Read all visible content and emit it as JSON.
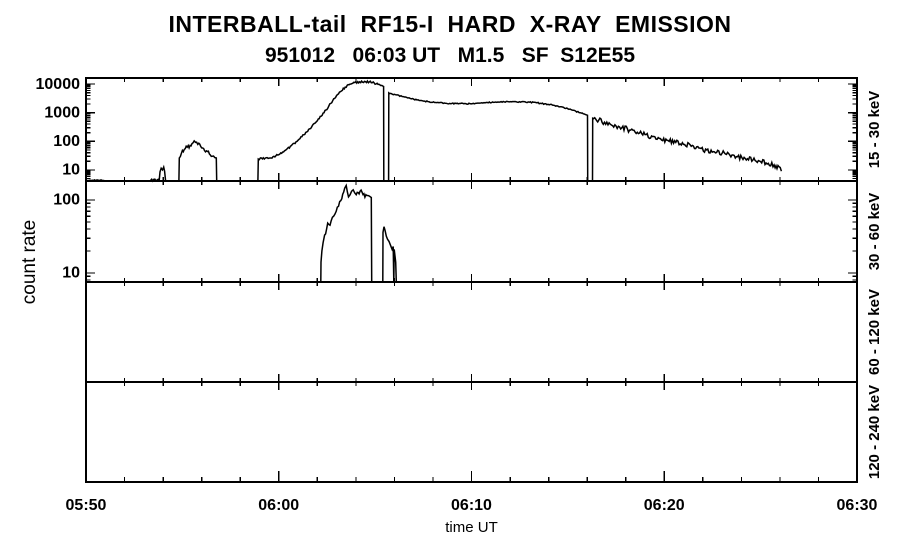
{
  "chart_data": {
    "type": "line",
    "title": "INTERBALL-tail  RF15-I  HARD  X-RAY  EMISSION",
    "subtitle": "951012   06:03 UT   M1.5   SF  S12E55",
    "xlabel": "time UT",
    "ylabel": "count rate",
    "line_color": "#000000",
    "background": "#ffffff",
    "noise_seed": 951012,
    "x_axis": {
      "unit": "minutes after 05:50 UT",
      "min": 0,
      "max": 40,
      "minor_tick_min": 2,
      "major_tick_min": 10,
      "ticks": [
        {
          "t": 0,
          "label": "05:50"
        },
        {
          "t": 10,
          "label": "06:00"
        },
        {
          "t": 20,
          "label": "06:10"
        },
        {
          "t": 30,
          "label": "06:20"
        },
        {
          "t": 40,
          "label": "06:30"
        }
      ]
    },
    "panels": [
      {
        "band_label": "15 - 30 keV",
        "scale": "log",
        "ylim": [
          4.1,
          16200
        ],
        "yticks": [
          {
            "v": 10,
            "label": "10"
          },
          {
            "v": 100,
            "label": "100"
          },
          {
            "v": 1000,
            "label": "1000"
          },
          {
            "v": 10000,
            "label": "10000"
          }
        ],
        "segments": [
          {
            "noise": 0.015,
            "points": [
              [
                0.05,
                4.35
              ],
              [
                0.95,
                4.35
              ]
            ]
          },
          {
            "noise": 0.04,
            "points": [
              [
                3.35,
                4.35
              ],
              [
                3.8,
                4.35
              ],
              [
                3.84,
                8.5
              ],
              [
                3.9,
                11.5
              ],
              [
                3.97,
                10
              ],
              [
                4.03,
                12.5
              ],
              [
                4.08,
                9
              ],
              [
                4.13,
                4.1
              ]
            ]
          },
          {
            "noise": 0.07,
            "points": [
              [
                4.82,
                4.1
              ],
              [
                4.84,
                26
              ],
              [
                4.95,
                38
              ],
              [
                5.1,
                52
              ],
              [
                5.25,
                62
              ],
              [
                5.4,
                72
              ],
              [
                5.55,
                88
              ],
              [
                5.68,
                92
              ],
              [
                5.8,
                78
              ],
              [
                5.95,
                66
              ],
              [
                6.1,
                56
              ],
              [
                6.25,
                46
              ],
              [
                6.4,
                36
              ],
              [
                6.55,
                30
              ],
              [
                6.68,
                27
              ],
              [
                6.76,
                26
              ],
              [
                6.78,
                4.1
              ]
            ]
          },
          {
            "noise": 0.035,
            "points": [
              [
                8.92,
                4.1
              ],
              [
                8.94,
                24
              ],
              [
                9.1,
                26
              ],
              [
                9.25,
                24
              ],
              [
                9.4,
                27
              ],
              [
                9.55,
                26
              ],
              [
                9.7,
                29
              ],
              [
                9.85,
                31
              ],
              [
                10.0,
                34
              ],
              [
                10.2,
                42
              ],
              [
                10.4,
                52
              ],
              [
                10.6,
                66
              ],
              [
                10.8,
                85
              ],
              [
                11.0,
                108
              ],
              [
                11.2,
                145
              ],
              [
                11.45,
                210
              ],
              [
                11.7,
                310
              ],
              [
                11.95,
                480
              ],
              [
                12.2,
                750
              ],
              [
                12.45,
                1250
              ],
              [
                12.7,
                2100
              ],
              [
                12.95,
                3400
              ],
              [
                13.2,
                5400
              ],
              [
                13.45,
                7800
              ],
              [
                13.7,
                9900
              ],
              [
                13.95,
                11200
              ],
              [
                14.2,
                11900
              ],
              [
                14.45,
                12300
              ],
              [
                14.7,
                11800
              ],
              [
                14.95,
                10800
              ],
              [
                15.15,
                9700
              ],
              [
                15.3,
                8800
              ],
              [
                15.44,
                8200
              ],
              [
                15.45,
                4.1
              ]
            ]
          },
          {
            "noise": 0.02,
            "points": [
              [
                15.7,
                4.1
              ],
              [
                15.71,
                4900
              ],
              [
                15.85,
                4600
              ],
              [
                16.1,
                4150
              ],
              [
                16.4,
                3650
              ],
              [
                16.7,
                3250
              ],
              [
                17.0,
                2950
              ],
              [
                17.4,
                2650
              ],
              [
                17.8,
                2400
              ],
              [
                18.2,
                2250
              ],
              [
                18.7,
                2120
              ],
              [
                19.2,
                2060
              ],
              [
                19.7,
                2060
              ],
              [
                20.2,
                2110
              ],
              [
                20.7,
                2200
              ],
              [
                21.2,
                2300
              ],
              [
                21.7,
                2380
              ],
              [
                22.2,
                2420
              ],
              [
                22.6,
                2400
              ],
              [
                23.0,
                2320
              ],
              [
                23.4,
                2200
              ],
              [
                23.8,
                2030
              ],
              [
                24.2,
                1830
              ],
              [
                24.6,
                1600
              ],
              [
                25.0,
                1360
              ],
              [
                25.4,
                1130
              ],
              [
                25.7,
                960
              ],
              [
                25.95,
                840
              ],
              [
                26.02,
                810
              ],
              [
                26.03,
                4.1
              ]
            ]
          },
          {
            "noise": 0.1,
            "points": [
              [
                26.28,
                4.1
              ],
              [
                26.29,
                640
              ],
              [
                26.6,
                545
              ],
              [
                26.9,
                465
              ],
              [
                27.2,
                395
              ],
              [
                27.5,
                340
              ],
              [
                27.8,
                295
              ],
              [
                28.2,
                245
              ],
              [
                28.6,
                205
              ],
              [
                29.0,
                172
              ],
              [
                29.4,
                146
              ],
              [
                29.8,
                124
              ],
              [
                30.2,
                106
              ],
              [
                30.6,
                91
              ],
              [
                31.0,
                78
              ],
              [
                31.4,
                67
              ],
              [
                31.8,
                58
              ],
              [
                32.2,
                50
              ],
              [
                32.6,
                43
              ],
              [
                33.0,
                38
              ],
              [
                33.4,
                33
              ],
              [
                33.8,
                29
              ],
              [
                34.2,
                25
              ],
              [
                34.6,
                22
              ],
              [
                35.0,
                19.5
              ],
              [
                35.4,
                17
              ],
              [
                35.7,
                15
              ],
              [
                35.95,
                13
              ],
              [
                36.08,
                9
              ]
            ]
          }
        ]
      },
      {
        "band_label": "30 - 60 keV",
        "scale": "log",
        "ylim": [
          7.5,
          182
        ],
        "yticks": [
          {
            "v": 10,
            "label": "10"
          },
          {
            "v": 100,
            "label": "100"
          }
        ],
        "segments": [
          {
            "noise": 0.055,
            "points": [
              [
                12.18,
                7.5
              ],
              [
                12.19,
                14
              ],
              [
                12.24,
                20
              ],
              [
                12.3,
                26
              ],
              [
                12.38,
                33
              ],
              [
                12.48,
                40
              ],
              [
                12.6,
                46
              ],
              [
                12.72,
                52
              ],
              [
                12.85,
                60
              ],
              [
                12.98,
                70
              ],
              [
                13.1,
                82
              ],
              [
                13.22,
                98
              ],
              [
                13.32,
                120
              ],
              [
                13.42,
                145
              ],
              [
                13.5,
                158
              ],
              [
                13.56,
                128
              ],
              [
                13.62,
                110
              ],
              [
                13.7,
                118
              ],
              [
                13.78,
                132
              ],
              [
                13.86,
                138
              ],
              [
                13.94,
                125
              ],
              [
                14.02,
                118
              ],
              [
                14.12,
                126
              ],
              [
                14.22,
                132
              ],
              [
                14.32,
                128
              ],
              [
                14.42,
                122
              ],
              [
                14.52,
                118
              ],
              [
                14.62,
                115
              ],
              [
                14.72,
                112
              ],
              [
                14.8,
                108
              ],
              [
                14.82,
                7.5
              ]
            ]
          },
          {
            "noise": 0.07,
            "points": [
              [
                15.4,
                7.5
              ],
              [
                15.41,
                36
              ],
              [
                15.46,
                43
              ],
              [
                15.52,
                38
              ],
              [
                15.58,
                32
              ],
              [
                15.64,
                29
              ],
              [
                15.72,
                27
              ],
              [
                15.8,
                24
              ],
              [
                15.88,
                21
              ],
              [
                15.94,
                23
              ],
              [
                15.97,
                7.5
              ],
              [
                15.99,
                21
              ],
              [
                16.03,
                17
              ],
              [
                16.07,
                14
              ],
              [
                16.1,
                7.5
              ]
            ]
          }
        ]
      },
      {
        "band_label": "60 - 120 keV",
        "scale": "log",
        "ylim": null,
        "yticks": [],
        "segments": []
      },
      {
        "band_label": "120 - 240 keV",
        "scale": "log",
        "ylim": null,
        "yticks": [],
        "segments": []
      }
    ]
  }
}
